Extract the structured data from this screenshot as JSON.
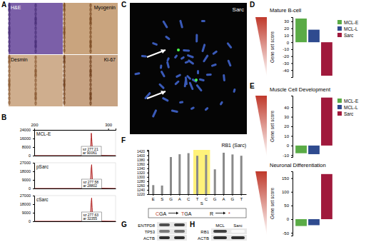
{
  "panel_labels": [
    "A",
    "B",
    "C",
    "D",
    "E",
    "F",
    "G",
    "H"
  ],
  "histology": {
    "labels": [
      "H&E",
      "Myogenin",
      "Desmin",
      "Ki-67"
    ]
  },
  "fish": {
    "label": "Sarc"
  },
  "chart_data": [
    {
      "type": "line",
      "title": "MCL-E",
      "x": [
        200,
        272,
        275,
        276,
        277,
        277.2,
        278,
        279,
        282,
        310
      ],
      "values": [
        0,
        0,
        600,
        5000,
        17000,
        21000,
        13000,
        3000,
        200,
        0
      ],
      "color": "#b22222",
      "xlim": [
        200,
        310
      ],
      "xticks": [
        200,
        300
      ],
      "ylim": [
        0,
        24000
      ],
      "yticks": [
        0,
        8000,
        16000,
        24000
      ],
      "annotations": [
        "sz 277.21",
        "ar 90061"
      ]
    },
    {
      "type": "line",
      "title": "pSarc",
      "x": [
        200,
        272,
        275,
        276,
        277,
        277.6,
        278.3,
        279,
        282,
        310
      ],
      "values": [
        0,
        0,
        800,
        7000,
        21000,
        25000,
        15000,
        3500,
        300,
        0
      ],
      "color": "#b22222",
      "xlim": [
        200,
        310
      ],
      "ylim": [
        0,
        27000
      ],
      "yticks": [
        0,
        9000,
        18000,
        27000
      ],
      "tick_labels": "y",
      "annotations": [
        "sz 277.58",
        "ar 28802"
      ]
    },
    {
      "type": "line",
      "title": "cSarc",
      "x": [
        200,
        272,
        275,
        276,
        277,
        277.6,
        278.3,
        279,
        282,
        310
      ],
      "values": [
        0,
        0,
        700,
        6500,
        20000,
        24500,
        14500,
        3200,
        250,
        0
      ],
      "color": "#b22222",
      "xlim": [
        200,
        310
      ],
      "ylim": [
        0,
        27000
      ],
      "yticks": [
        0,
        9000,
        18000,
        27000
      ],
      "tick_labels": "y",
      "annotations": [
        "sz 277.63",
        "ar 32355"
      ]
    },
    {
      "type": "bar",
      "title": "Mature B-cell",
      "y_label": "Gene set score",
      "categories": [
        "MCL-E",
        "MCL-L",
        "Sarc"
      ],
      "values": [
        34,
        18,
        -48
      ],
      "colors": [
        "#5aab46",
        "#2f4b8f",
        "#a0193c"
      ],
      "ylim": [
        -50,
        36
      ],
      "yticks": [
        -40,
        -30,
        -20,
        -10,
        0,
        10,
        20,
        30
      ],
      "legend": "right",
      "tick_labels": "y"
    },
    {
      "type": "bar",
      "title": "Muscle Cell Development",
      "y_label": "Gene set score",
      "categories": [
        "MCL-E",
        "MCL-L",
        "Sarc"
      ],
      "values": [
        -8,
        -9,
        50
      ],
      "colors": [
        "#5aab46",
        "#2f4b8f",
        "#a0193c"
      ],
      "ylim": [
        -12,
        52
      ],
      "yticks": [
        -10,
        0,
        10,
        20,
        30,
        40
      ],
      "legend": "right",
      "tick_labels": "y"
    },
    {
      "type": "bar",
      "title": "Neuronal Differentiation",
      "y_label": "Gene set score",
      "categories": [
        "MCL-E",
        "MCL-L",
        "Sarc"
      ],
      "values": [
        -25,
        -22,
        165
      ],
      "colors": [
        "#5aab46",
        "#2f4b8f",
        "#a0193c"
      ],
      "ylim": [
        -60,
        175
      ],
      "yticks": [
        -50,
        0,
        50,
        100,
        150
      ],
      "tick_labels": "y"
    },
    {
      "type": "bar",
      "title": "RB1 (Sarc)",
      "categories": [
        "E",
        "S",
        "G",
        "A",
        "C",
        "T",
        "C",
        "G",
        "A",
        "G",
        "T"
      ],
      "values": [
        1262,
        1260,
        1392,
        1405,
        1410,
        1398,
        1402,
        1335,
        1412,
        1404,
        1398
      ],
      "color": "#8a8a8a",
      "ylim": [
        1220,
        1425
      ],
      "yticks": [
        1220,
        1240,
        1260,
        1280,
        1300,
        1320,
        1340,
        1360,
        1380,
        1400,
        1420
      ],
      "annotations": [
        {
          "text": "S",
          "span": [
            5,
            6
          ]
        }
      ],
      "mutation": {
        "codon_from": "CGA",
        "codon_to": "TGA",
        "aa_from": "R",
        "aa_to": "*"
      }
    }
  ],
  "blots": [
    {
      "rows": [
        "ENTPD8",
        "TP53",
        "ACTB"
      ],
      "intensity": [
        [
          0.75,
          0.8
        ],
        [
          0.6,
          0.65
        ],
        [
          0.85,
          0.85
        ]
      ]
    },
    {
      "columns": [
        "MCL",
        "Sarc"
      ],
      "rows": [
        "RB1",
        "ACTB"
      ],
      "intensity": [
        [
          0.8,
          0.05
        ],
        [
          0.85,
          0.85
        ]
      ]
    }
  ]
}
